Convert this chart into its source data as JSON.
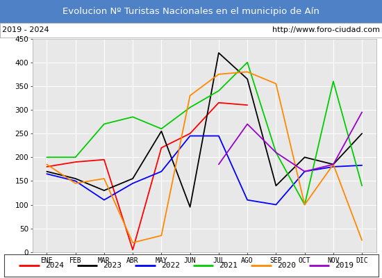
{
  "title": "Evolucion Nº Turistas Nacionales en el municipio de Aín",
  "subtitle_left": "2019 - 2024",
  "subtitle_right": "http://www.foro-ciudad.com",
  "months": [
    "ENE",
    "FEB",
    "MAR",
    "ABR",
    "MAY",
    "JUN",
    "JUL",
    "AGO",
    "SEP",
    "OCT",
    "NOV",
    "DIC"
  ],
  "ylim": [
    0,
    450
  ],
  "yticks": [
    0,
    50,
    100,
    150,
    200,
    250,
    300,
    350,
    400,
    450
  ],
  "series": [
    {
      "year": "2024",
      "color": "#ff0000",
      "data": [
        180,
        190,
        195,
        5,
        220,
        250,
        315,
        310,
        null,
        null,
        null,
        null
      ]
    },
    {
      "year": "2023",
      "color": "#000000",
      "data": [
        170,
        155,
        130,
        155,
        255,
        95,
        420,
        365,
        140,
        200,
        185,
        250
      ]
    },
    {
      "year": "2022",
      "color": "#0000ff",
      "data": [
        165,
        150,
        110,
        145,
        170,
        245,
        245,
        110,
        100,
        170,
        180,
        183
      ]
    },
    {
      "year": "2021",
      "color": "#00cc00",
      "data": [
        200,
        200,
        270,
        285,
        260,
        305,
        340,
        400,
        210,
        100,
        360,
        140
      ]
    },
    {
      "year": "2020",
      "color": "#ff8800",
      "data": [
        185,
        145,
        155,
        20,
        35,
        330,
        375,
        380,
        355,
        100,
        185,
        25
      ]
    },
    {
      "year": "2019",
      "color": "#9900cc",
      "data": [
        null,
        null,
        null,
        null,
        null,
        null,
        185,
        270,
        210,
        170,
        185,
        295
      ]
    }
  ],
  "title_bg_color": "#4f81c7",
  "title_color": "#ffffff",
  "subtitle_bg_color": "#ffffff",
  "subtitle_color": "#000000",
  "plot_bg_color": "#e8e8e8",
  "grid_color": "#ffffff",
  "legend_items": [
    {
      "label": "2024",
      "color": "#ff0000"
    },
    {
      "label": "2023",
      "color": "#000000"
    },
    {
      "label": "2022",
      "color": "#0000ff"
    },
    {
      "label": "2021",
      "color": "#00cc00"
    },
    {
      "label": "2020",
      "color": "#ff8800"
    },
    {
      "label": "2019",
      "color": "#9900cc"
    }
  ]
}
